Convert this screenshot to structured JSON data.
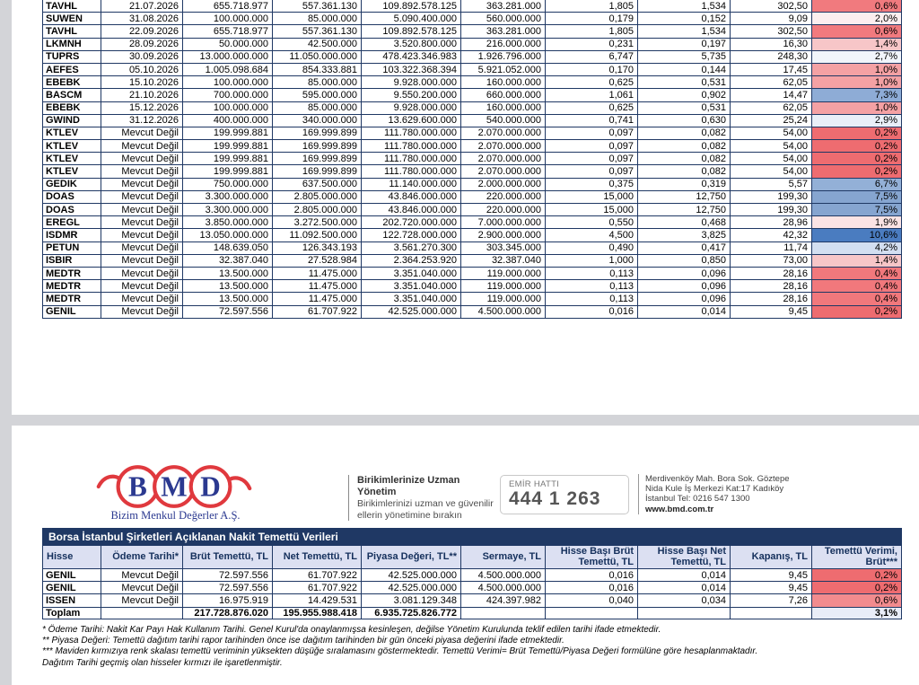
{
  "branding": {
    "logo_text_b": "B",
    "logo_text_m": "M",
    "logo_text_d": "D",
    "company": "Bizim Menkul Değerler A.Ş.",
    "logo_red": "#e0393e",
    "logo_navy": "#2b3990",
    "tagline_title": "Birikimlerinize Uzman Yönetim",
    "tagline_line1": "Birikimlerinizi uzman ve güvenilir",
    "tagline_line2": "ellerin yönetimine bırakın",
    "emir_label": "EMİR HATTI",
    "emir_number": "444 1 263",
    "address_line1": "Merdivenköy Mah. Bora Sok. Göztepe",
    "address_line2": "Nida Kule İş Merkezi Kat:17 Kadıköy",
    "address_line3": "İstanbul    Tel: 0216 547 1300",
    "website": "www.bmd.com.tr"
  },
  "colors": {
    "border_navy": "#1f3864",
    "title_bar_bg": "#1f3864",
    "header_bg": "#dce0f2",
    "gray_band": "#d3d4d8"
  },
  "top_table": {
    "rows": [
      {
        "hisse": "TAVHL",
        "odeme": "21.07.2026",
        "brut": "655.718.977",
        "net": "557.361.130",
        "piyasa": "109.892.578.125",
        "sermaye": "363.281.000",
        "hb_brut": "1,805",
        "hb_net": "1,534",
        "kapanis": "302,50",
        "verim": "0,6%",
        "verim_bg": "#F17A7E"
      },
      {
        "hisse": "SUWEN",
        "odeme": "31.08.2026",
        "brut": "100.000.000",
        "net": "85.000.000",
        "piyasa": "5.090.400.000",
        "sermaye": "560.000.000",
        "hb_brut": "0,179",
        "hb_net": "0,152",
        "kapanis": "9,09",
        "verim": "2,0%",
        "verim_bg": "#FCEEEF"
      },
      {
        "hisse": "TAVHL",
        "odeme": "22.09.2026",
        "brut": "655.718.977",
        "net": "557.361.130",
        "piyasa": "109.892.578.125",
        "sermaye": "363.281.000",
        "hb_brut": "1,805",
        "hb_net": "1,534",
        "kapanis": "302,50",
        "verim": "0,6%",
        "verim_bg": "#F17A7E"
      },
      {
        "hisse": "LKMNH",
        "odeme": "28.09.2026",
        "brut": "50.000.000",
        "net": "42.500.000",
        "piyasa": "3.520.800.000",
        "sermaye": "216.000.000",
        "hb_brut": "0,231",
        "hb_net": "0,197",
        "kapanis": "16,30",
        "verim": "1,4%",
        "verim_bg": "#F7C6C8"
      },
      {
        "hisse": "TUPRS",
        "odeme": "30.09.2026",
        "brut": "13.000.000.000",
        "net": "11.050.000.000",
        "piyasa": "478.423.346.983",
        "sermaye": "1.926.796.000",
        "hb_brut": "6,747",
        "hb_net": "5,735",
        "kapanis": "248,30",
        "verim": "2,7%",
        "verim_bg": "#F1F5FB"
      },
      {
        "hisse": "AEFES",
        "odeme": "05.10.2026",
        "brut": "1.005.098.684",
        "net": "854.333.881",
        "piyasa": "103.322.368.394",
        "sermaye": "5.921.052.000",
        "hb_brut": "0,170",
        "hb_net": "0,144",
        "kapanis": "17,45",
        "verim": "1,0%",
        "verim_bg": "#F4A1A4"
      },
      {
        "hisse": "EBEBK",
        "odeme": "15.10.2026",
        "brut": "100.000.000",
        "net": "85.000.000",
        "piyasa": "9.928.000.000",
        "sermaye": "160.000.000",
        "hb_brut": "0,625",
        "hb_net": "0,531",
        "kapanis": "62,05",
        "verim": "1,0%",
        "verim_bg": "#F4A1A4"
      },
      {
        "hisse": "BASCM",
        "odeme": "21.10.2026",
        "brut": "700.000.000",
        "net": "595.000.000",
        "piyasa": "9.550.200.000",
        "sermaye": "660.000.000",
        "hb_brut": "1,061",
        "hb_net": "0,902",
        "kapanis": "14,47",
        "verim": "7,3%",
        "verim_bg": "#8EACD6"
      },
      {
        "hisse": "EBEBK",
        "odeme": "15.12.2026",
        "brut": "100.000.000",
        "net": "85.000.000",
        "piyasa": "9.928.000.000",
        "sermaye": "160.000.000",
        "hb_brut": "0,625",
        "hb_net": "0,531",
        "kapanis": "62,05",
        "verim": "1,0%",
        "verim_bg": "#F4A1A4"
      },
      {
        "hisse": "GWIND",
        "odeme": "31.12.2026",
        "brut": "400.000.000",
        "net": "340.000.000",
        "piyasa": "13.629.600.000",
        "sermaye": "540.000.000",
        "hb_brut": "0,741",
        "hb_net": "0,630",
        "kapanis": "25,24",
        "verim": "2,9%",
        "verim_bg": "#E9EFF8"
      },
      {
        "hisse": "KTLEV",
        "odeme": "Mevcut Değil",
        "brut": "199.999.881",
        "net": "169.999.899",
        "piyasa": "111.780.000.000",
        "sermaye": "2.070.000.000",
        "hb_brut": "0,097",
        "hb_net": "0,082",
        "kapanis": "54,00",
        "verim": "0,2%",
        "verim_bg": "#EE6C70"
      },
      {
        "hisse": "KTLEV",
        "odeme": "Mevcut Değil",
        "brut": "199.999.881",
        "net": "169.999.899",
        "piyasa": "111.780.000.000",
        "sermaye": "2.070.000.000",
        "hb_brut": "0,097",
        "hb_net": "0,082",
        "kapanis": "54,00",
        "verim": "0,2%",
        "verim_bg": "#EE6C70"
      },
      {
        "hisse": "KTLEV",
        "odeme": "Mevcut Değil",
        "brut": "199.999.881",
        "net": "169.999.899",
        "piyasa": "111.780.000.000",
        "sermaye": "2.070.000.000",
        "hb_brut": "0,097",
        "hb_net": "0,082",
        "kapanis": "54,00",
        "verim": "0,2%",
        "verim_bg": "#EE6C70"
      },
      {
        "hisse": "KTLEV",
        "odeme": "Mevcut Değil",
        "brut": "199.999.881",
        "net": "169.999.899",
        "piyasa": "111.780.000.000",
        "sermaye": "2.070.000.000",
        "hb_brut": "0,097",
        "hb_net": "0,082",
        "kapanis": "54,00",
        "verim": "0,2%",
        "verim_bg": "#EE6C70"
      },
      {
        "hisse": "GEDIK",
        "odeme": "Mevcut Değil",
        "brut": "750.000.000",
        "net": "637.500.000",
        "piyasa": "11.140.000.000",
        "sermaye": "2.000.000.000",
        "hb_brut": "0,375",
        "hb_net": "0,319",
        "kapanis": "5,57",
        "verim": "6,7%",
        "verim_bg": "#93B0D7"
      },
      {
        "hisse": "DOAS",
        "odeme": "Mevcut Değil",
        "brut": "3.300.000.000",
        "net": "2.805.000.000",
        "piyasa": "43.846.000.000",
        "sermaye": "220.000.000",
        "hb_brut": "15,000",
        "hb_net": "12,750",
        "kapanis": "199,30",
        "verim": "7,5%",
        "verim_bg": "#86A5D0"
      },
      {
        "hisse": "DOAS",
        "odeme": "Mevcut Değil",
        "brut": "3.300.000.000",
        "net": "2.805.000.000",
        "piyasa": "43.846.000.000",
        "sermaye": "220.000.000",
        "hb_brut": "15,000",
        "hb_net": "12,750",
        "kapanis": "199,30",
        "verim": "7,5%",
        "verim_bg": "#86A5D0"
      },
      {
        "hisse": "EREGL",
        "odeme": "Mevcut Değil",
        "brut": "3.850.000.000",
        "net": "3.272.500.000",
        "piyasa": "202.720.000.000",
        "sermaye": "7.000.000.000",
        "hb_brut": "0,550",
        "hb_net": "0,468",
        "kapanis": "28,96",
        "verim": "1,9%",
        "verim_bg": "#FBE3E4"
      },
      {
        "hisse": "ISDMR",
        "odeme": "Mevcut Değil",
        "brut": "13.050.000.000",
        "net": "11.092.500.000",
        "piyasa": "122.728.000.000",
        "sermaye": "2.900.000.000",
        "hb_brut": "4,500",
        "hb_net": "3,825",
        "kapanis": "42,32",
        "verim": "10,6%",
        "verim_bg": "#4A7CC0"
      },
      {
        "hisse": "PETUN",
        "odeme": "Mevcut Değil",
        "brut": "148.639.050",
        "net": "126.343.193",
        "piyasa": "3.561.270.300",
        "sermaye": "303.345.000",
        "hb_brut": "0,490",
        "hb_net": "0,417",
        "kapanis": "11,74",
        "verim": "4,2%",
        "verim_bg": "#D3DFF1"
      },
      {
        "hisse": "ISBIR",
        "odeme": "Mevcut Değil",
        "brut": "32.387.040",
        "net": "27.528.984",
        "piyasa": "2.364.253.920",
        "sermaye": "32.387.040",
        "hb_brut": "1,000",
        "hb_net": "0,850",
        "kapanis": "73,00",
        "verim": "1,4%",
        "verim_bg": "#F7C6C8"
      },
      {
        "hisse": "MEDTR",
        "odeme": "Mevcut Değil",
        "brut": "13.500.000",
        "net": "11.475.000",
        "piyasa": "3.351.040.000",
        "sermaye": "119.000.000",
        "hb_brut": "0,113",
        "hb_net": "0,096",
        "kapanis": "28,16",
        "verim": "0,4%",
        "verim_bg": "#F1787C"
      },
      {
        "hisse": "MEDTR",
        "odeme": "Mevcut Değil",
        "brut": "13.500.000",
        "net": "11.475.000",
        "piyasa": "3.351.040.000",
        "sermaye": "119.000.000",
        "hb_brut": "0,113",
        "hb_net": "0,096",
        "kapanis": "28,16",
        "verim": "0,4%",
        "verim_bg": "#F1787C"
      },
      {
        "hisse": "MEDTR",
        "odeme": "Mevcut Değil",
        "brut": "13.500.000",
        "net": "11.475.000",
        "piyasa": "3.351.040.000",
        "sermaye": "119.000.000",
        "hb_brut": "0,113",
        "hb_net": "0,096",
        "kapanis": "28,16",
        "verim": "0,4%",
        "verim_bg": "#F1787C"
      },
      {
        "hisse": "GENIL",
        "odeme": "Mevcut Değil",
        "brut": "72.597.556",
        "net": "61.707.922",
        "piyasa": "42.525.000.000",
        "sermaye": "4.500.000.000",
        "hb_brut": "0,016",
        "hb_net": "0,014",
        "kapanis": "9,45",
        "verim": "0,2%",
        "verim_bg": "#EE6C70"
      }
    ]
  },
  "bottom_table": {
    "title": "Borsa İstanbul Şirketleri Açıklanan Nakit Temettü Verileri",
    "headers": [
      "Hisse",
      "Ödeme Tarihi*",
      "Brüt Temettü, TL",
      "Net Temettü, TL",
      "Piyasa Değeri, TL**",
      "Sermaye, TL",
      "Hisse Başı Brüt Temettü, TL",
      "Hisse Başı Net Temettü, TL",
      "Kapanış, TL",
      "Temettü Verimi, Brüt***"
    ],
    "rows": [
      {
        "hisse": "GENIL",
        "odeme": "Mevcut Değil",
        "brut": "72.597.556",
        "net": "61.707.922",
        "piyasa": "42.525.000.000",
        "sermaye": "4.500.000.000",
        "hb_brut": "0,016",
        "hb_net": "0,014",
        "kapanis": "9,45",
        "verim": "0,2%",
        "verim_bg": "#EE6C70"
      },
      {
        "hisse": "GENIL",
        "odeme": "Mevcut Değil",
        "brut": "72.597.556",
        "net": "61.707.922",
        "piyasa": "42.525.000.000",
        "sermaye": "4.500.000.000",
        "hb_brut": "0,016",
        "hb_net": "0,014",
        "kapanis": "9,45",
        "verim": "0,2%",
        "verim_bg": "#EE6C70"
      },
      {
        "hisse": "ISSEN",
        "odeme": "Mevcut Değil",
        "brut": "16.975.919",
        "net": "14.429.531",
        "piyasa": "3.081.129.348",
        "sermaye": "424.397.982",
        "hb_brut": "0,040",
        "hb_net": "0,034",
        "kapanis": "7,26",
        "verim": "0,6%",
        "verim_bg": "#F28B8E"
      }
    ],
    "total": {
      "label": "Toplam",
      "brut": "217.728.876.020",
      "net": "195.955.988.418",
      "piyasa": "6.935.725.826.772",
      "verim": "3,1%",
      "verim_bg": "#E9EDF8"
    }
  },
  "footnotes": {
    "line1": "* Ödeme Tarihi: Nakit Kar Payı Hak Kullanım Tarihi. Genel Kurul'da onaylanmışsa kesinleşen, değilse Yönetim Kurulunda teklif edilen tarihi ifade etmektedir.",
    "line2": "** Piyasa Değeri: Temettü dağıtım tarihi rapor tarihinden önce ise dağıtım tarihinden bir gün önceki piyasa değerini ifade etmektedir.",
    "line3": "*** Maviden kırmızıya renk skalası temettü veriminin yüksekten düşüğe sıralamasını göstermektedir. Temettü Verimi= Brüt Temettü/Piyasa Değeri formülüne göre hesaplanmaktadır.",
    "line4": "Dağıtım Tarihi geçmiş olan hisseler kırmızı ile işaretlenmiştir."
  }
}
